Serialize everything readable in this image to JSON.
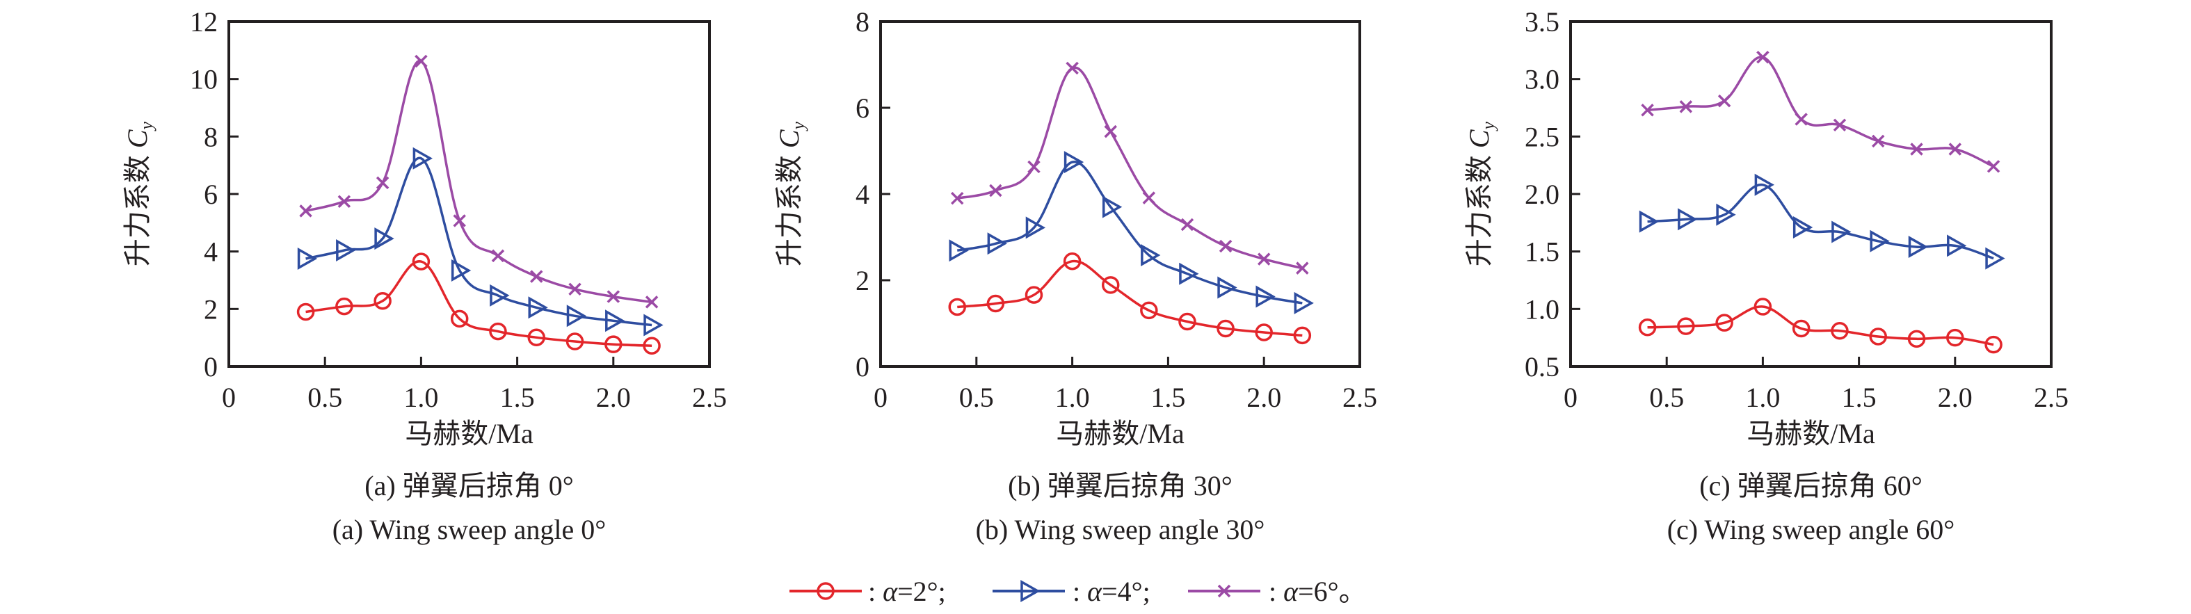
{
  "colors": {
    "a2": "#e3262b",
    "a4": "#2e4da0",
    "a6": "#9b4aa5",
    "axis": "#231f20"
  },
  "legend": {
    "items": [
      {
        "series": "a2",
        "marker": "circle",
        "label_sep": ": ",
        "alpha": "α",
        "text": "=2°;"
      },
      {
        "series": "a4",
        "marker": "triangle-right",
        "label_sep": ": ",
        "alpha": "α",
        "text": "=4°;"
      },
      {
        "series": "a6",
        "marker": "x",
        "label_sep": ": ",
        "alpha": "α",
        "text": "=6°。"
      }
    ]
  },
  "chart_data": [
    {
      "type": "line",
      "caption_cn": "(a) 弹翼后掠角 0°",
      "caption_en": "(a) Wing sweep angle 0°",
      "xlabel": "马赫数/Ma",
      "ylabel_cn": "升力系数 ",
      "ylabel_sym": "C",
      "ylabel_sub": "y",
      "xlim": [
        0,
        2.5
      ],
      "ylim": [
        0,
        12
      ],
      "xticks": [
        "0",
        "0.5",
        "1.0",
        "1.5",
        "2.0",
        "2.5"
      ],
      "yticks": [
        "0",
        "2",
        "4",
        "6",
        "8",
        "10",
        "12"
      ],
      "grid": false,
      "x": [
        0.4,
        0.6,
        0.8,
        1.0,
        1.2,
        1.4,
        1.6,
        1.8,
        2.0,
        2.2
      ],
      "series": [
        {
          "name": "α=2°",
          "key": "a2",
          "values": [
            1.9,
            2.09,
            2.28,
            3.65,
            1.66,
            1.22,
            1.01,
            0.87,
            0.77,
            0.72
          ]
        },
        {
          "name": "α=4°",
          "key": "a4",
          "values": [
            3.75,
            4.04,
            4.45,
            7.24,
            3.34,
            2.47,
            2.05,
            1.76,
            1.59,
            1.44
          ]
        },
        {
          "name": "α=6°",
          "key": "a6",
          "values": [
            5.41,
            5.74,
            6.39,
            10.62,
            5.07,
            3.85,
            3.13,
            2.69,
            2.43,
            2.24
          ]
        }
      ]
    },
    {
      "type": "line",
      "caption_cn": "(b) 弹翼后掠角 30°",
      "caption_en": "(b) Wing sweep angle 30°",
      "xlabel": "马赫数/Ma",
      "ylabel_cn": "升力系数 ",
      "ylabel_sym": "C",
      "ylabel_sub": "y",
      "xlim": [
        0,
        2.5
      ],
      "ylim": [
        0,
        8
      ],
      "xticks": [
        "0",
        "0.5",
        "1.0",
        "1.5",
        "2.0",
        "2.5"
      ],
      "yticks": [
        "0",
        "2",
        "4",
        "6",
        "8"
      ],
      "grid": false,
      "x": [
        0.4,
        0.6,
        0.8,
        1.0,
        1.2,
        1.4,
        1.6,
        1.8,
        2.0,
        2.2
      ],
      "series": [
        {
          "name": "α=2°",
          "key": "a2",
          "values": [
            1.38,
            1.46,
            1.66,
            2.44,
            1.89,
            1.3,
            1.04,
            0.88,
            0.79,
            0.72
          ]
        },
        {
          "name": "α=4°",
          "key": "a4",
          "values": [
            2.69,
            2.85,
            3.22,
            4.74,
            3.7,
            2.58,
            2.15,
            1.83,
            1.62,
            1.47
          ]
        },
        {
          "name": "α=6°",
          "key": "a6",
          "values": [
            3.9,
            4.08,
            4.63,
            6.92,
            5.45,
            3.91,
            3.29,
            2.79,
            2.49,
            2.28
          ]
        }
      ]
    },
    {
      "type": "line",
      "caption_cn": "(c) 弹翼后掠角 60°",
      "caption_en": "(c) Wing sweep angle 60°",
      "xlabel": "马赫数/Ma",
      "ylabel_cn": "升力系数 ",
      "ylabel_sym": "C",
      "ylabel_sub": "y",
      "xlim": [
        0,
        2.5
      ],
      "ylim": [
        0.5,
        3.5
      ],
      "xticks": [
        "0",
        "0.5",
        "1.0",
        "1.5",
        "2.0",
        "2.5"
      ],
      "yticks": [
        "0.5",
        "1.0",
        "1.5",
        "2.0",
        "2.5",
        "3.0",
        "3.5"
      ],
      "grid": false,
      "x": [
        0.4,
        0.6,
        0.8,
        1.0,
        1.2,
        1.4,
        1.6,
        1.8,
        2.0,
        2.2
      ],
      "series": [
        {
          "name": "α=2°",
          "key": "a2",
          "values": [
            0.84,
            0.85,
            0.88,
            1.02,
            0.83,
            0.81,
            0.76,
            0.74,
            0.75,
            0.69
          ]
        },
        {
          "name": "α=4°",
          "key": "a4",
          "values": [
            1.76,
            1.78,
            1.82,
            2.08,
            1.71,
            1.67,
            1.59,
            1.54,
            1.55,
            1.44
          ]
        },
        {
          "name": "α=6°",
          "key": "a6",
          "values": [
            2.73,
            2.76,
            2.81,
            3.19,
            2.65,
            2.6,
            2.46,
            2.39,
            2.39,
            2.24
          ]
        }
      ]
    }
  ]
}
